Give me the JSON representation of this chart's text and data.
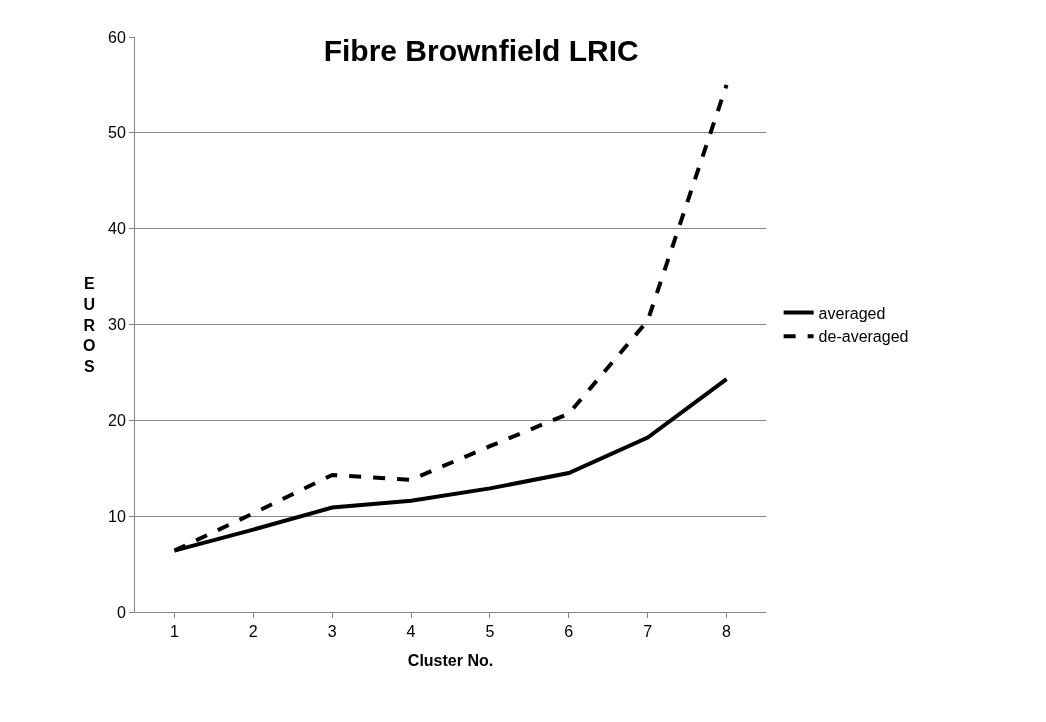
{
  "chart_data": {
    "type": "line",
    "title": "Fibre Brownfield LRIC",
    "xlabel": "Cluster No.",
    "ylabel": "E\nU\nR\nO\nS",
    "categories": [
      "1",
      "2",
      "3",
      "4",
      "5",
      "6",
      "7",
      "8"
    ],
    "series": [
      {
        "name": "averaged",
        "color": "#000000",
        "line_style": "solid",
        "values": [
          6.4,
          8.6,
          10.9,
          11.6,
          12.9,
          14.5,
          18.2,
          24.3
        ]
      },
      {
        "name": "de-averaged",
        "color": "#000000",
        "line_style": "dashed",
        "values": [
          6.4,
          10.3,
          14.3,
          13.8,
          17.3,
          20.7,
          30.4,
          55.0
        ]
      }
    ],
    "ylim": [
      0,
      60
    ],
    "yticks": [
      0,
      10,
      20,
      30,
      40,
      50,
      60
    ],
    "grid": "y",
    "legend": "right",
    "marker": "none"
  }
}
